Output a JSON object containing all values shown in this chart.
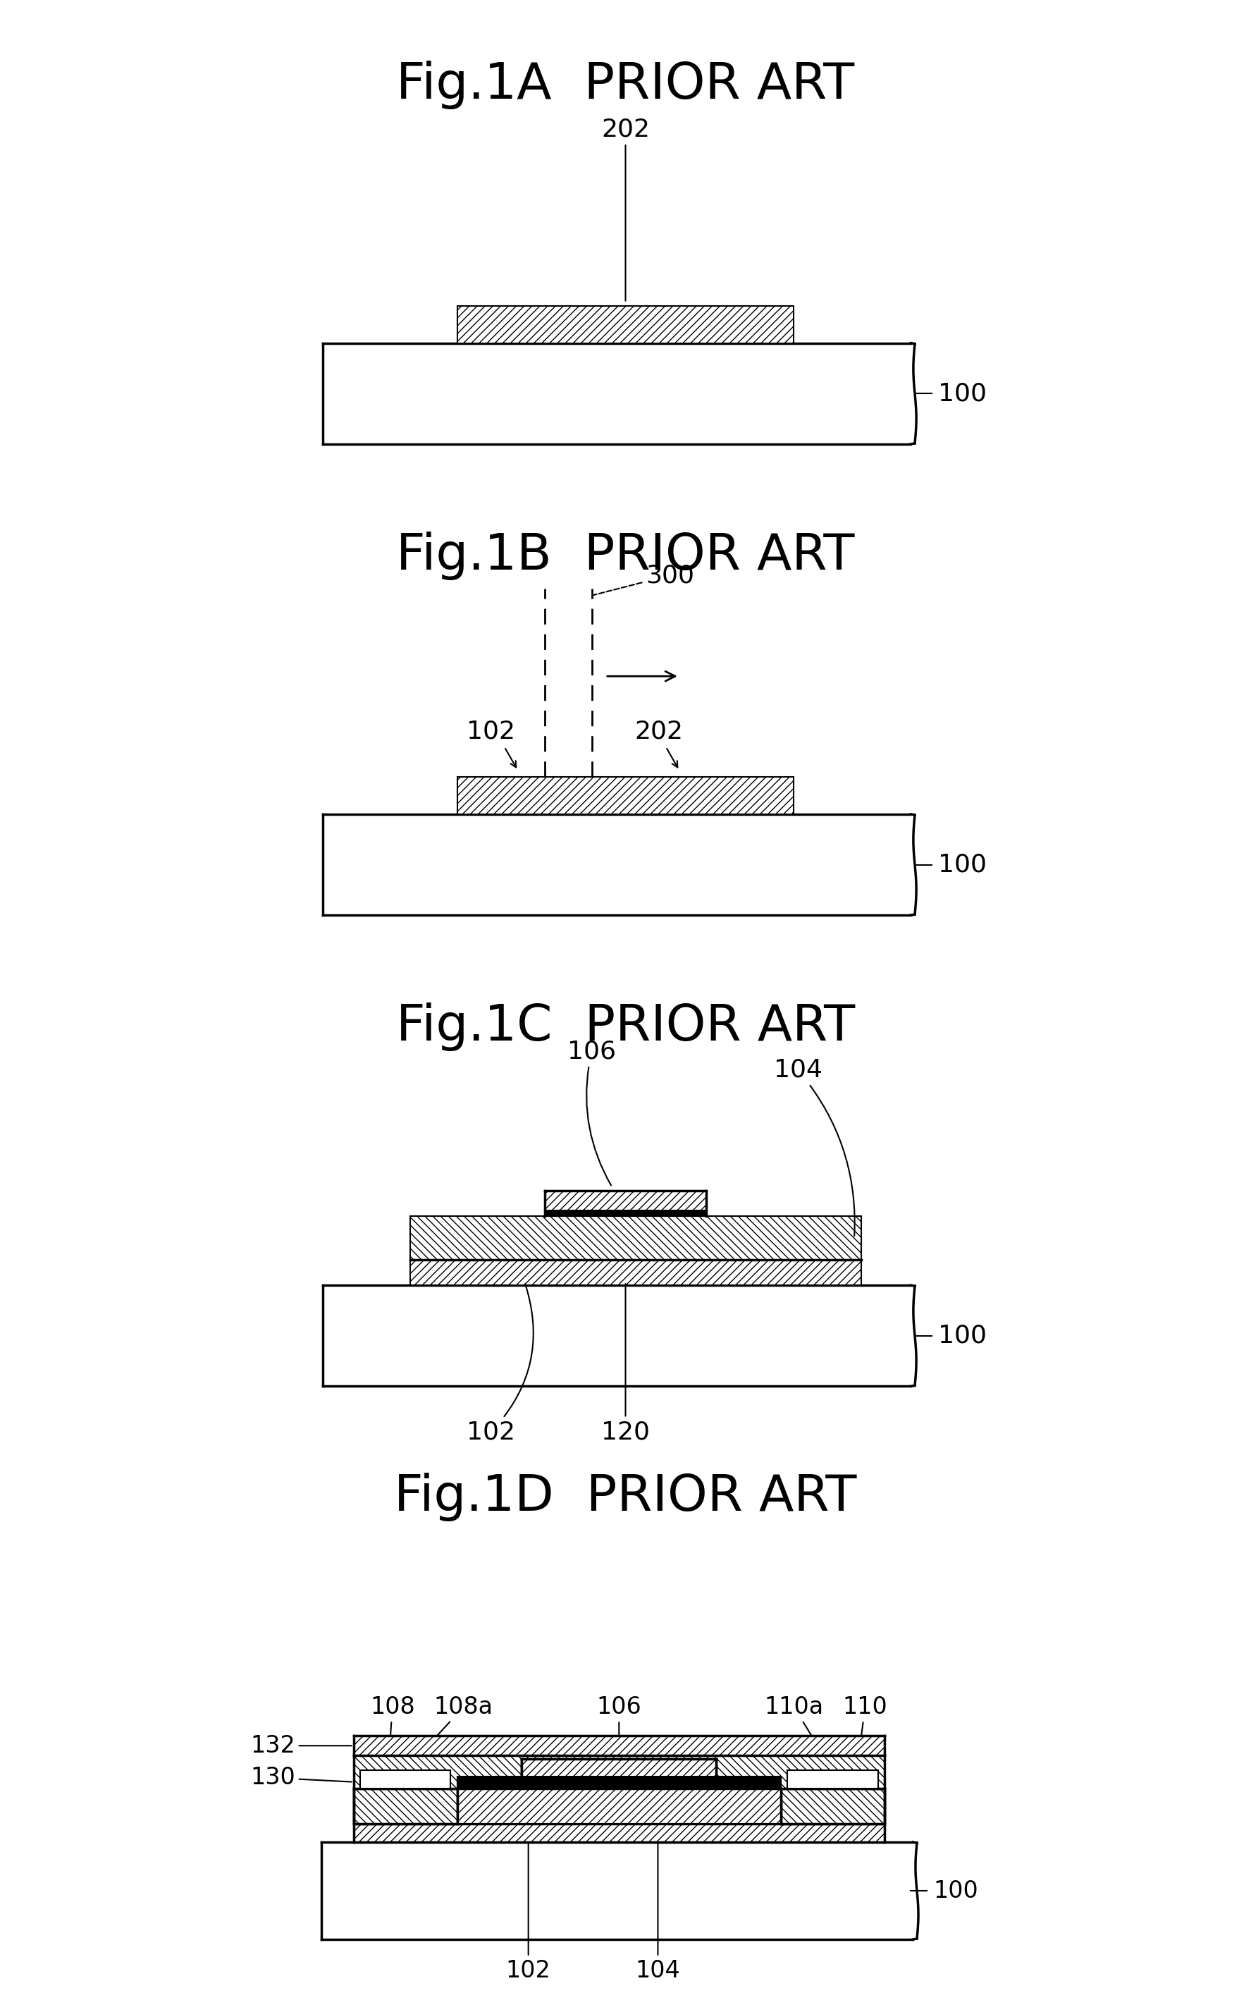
{
  "bg_color": "#ffffff",
  "title_1A": "Fig.1A  PRIOR ART",
  "title_1B": "Fig.1B  PRIOR ART",
  "title_1C": "Fig.1C  PRIOR ART",
  "title_1D": "Fig.1D  PRIOR ART",
  "title_fontsize": 52,
  "label_fontsize": 26,
  "lw_main": 2.5,
  "lw_thin": 1.5,
  "hatch_main": "///",
  "hatch_back": "\\\\\\"
}
